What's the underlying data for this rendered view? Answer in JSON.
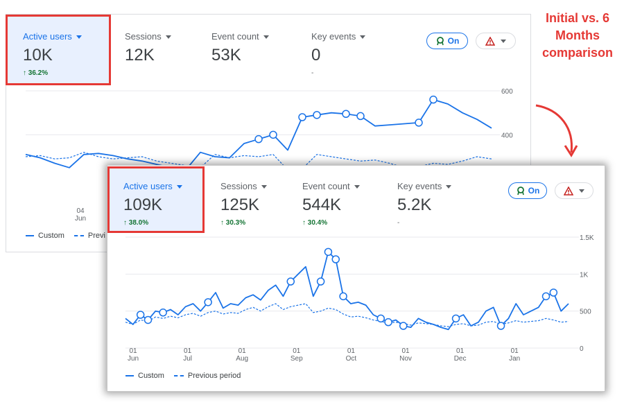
{
  "annotation": {
    "text": "Initial vs. 6 Months comparison"
  },
  "colors": {
    "accent": "#1a73e8",
    "positive": "#137333",
    "highlight": "#e53935",
    "active_bg": "#e8f0fe"
  },
  "panel_initial": {
    "metrics": [
      {
        "label": "Active users",
        "value": "10K",
        "delta": "↑ 36.2%"
      },
      {
        "label": "Sessions",
        "value": "12K",
        "delta": ""
      },
      {
        "label": "Event count",
        "value": "53K",
        "delta": ""
      },
      {
        "label": "Key events",
        "value": "0",
        "delta": "-"
      }
    ],
    "toggle": {
      "label": "On",
      "icon": "insights-badge-icon"
    },
    "alert": {
      "icon": "warning-triangle-icon"
    },
    "legend": {
      "current": "Custom",
      "previous": "Previ"
    }
  },
  "panel_six_months": {
    "metrics": [
      {
        "label": "Active users",
        "value": "109K",
        "delta": "↑ 38.0%"
      },
      {
        "label": "Sessions",
        "value": "125K",
        "delta": "↑ 30.3%"
      },
      {
        "label": "Event count",
        "value": "544K",
        "delta": "↑ 30.4%"
      },
      {
        "label": "Key events",
        "value": "5.2K",
        "delta": "-"
      }
    ],
    "toggle": {
      "label": "On",
      "icon": "insights-badge-icon"
    },
    "alert": {
      "icon": "warning-triangle-icon"
    },
    "legend": {
      "current": "Custom",
      "previous": "Previous period"
    }
  },
  "chart_data": [
    {
      "type": "line",
      "title": "Active users (initial)",
      "ylim": [
        0,
        600
      ],
      "y_ticks": [
        "600",
        "400"
      ],
      "x_ticks": [
        {
          "day": "04",
          "month": "Jun"
        }
      ],
      "series": [
        {
          "name": "Custom",
          "style": "solid",
          "values": [
            310,
            295,
            270,
            250,
            310,
            315,
            305,
            290,
            280,
            265,
            250,
            240,
            320,
            300,
            295,
            360,
            380,
            400,
            330,
            480,
            490,
            500,
            495,
            485,
            440,
            445,
            450,
            455,
            560,
            540,
            500,
            470,
            430
          ]
        },
        {
          "name": "Previous period",
          "style": "dashed",
          "values": [
            300,
            305,
            290,
            295,
            320,
            300,
            290,
            295,
            300,
            280,
            270,
            260,
            250,
            310,
            295,
            305,
            300,
            310,
            240,
            245,
            310,
            300,
            290,
            280,
            285,
            270,
            250,
            255,
            270,
            265,
            280,
            300,
            290
          ]
        }
      ],
      "anomaly_indices": [
        16,
        17,
        19,
        20,
        22,
        23,
        27,
        28
      ]
    },
    {
      "type": "line",
      "title": "Active users (6 months)",
      "ylim": [
        0,
        1500
      ],
      "y_ticks": [
        "1.5K",
        "1K",
        "500",
        "0"
      ],
      "x_ticks": [
        {
          "day": "01",
          "month": "Jun"
        },
        {
          "day": "01",
          "month": "Jul"
        },
        {
          "day": "01",
          "month": "Aug"
        },
        {
          "day": "01",
          "month": "Sep"
        },
        {
          "day": "01",
          "month": "Oct"
        },
        {
          "day": "01",
          "month": "Nov"
        },
        {
          "day": "01",
          "month": "Dec"
        },
        {
          "day": "01",
          "month": "Jan"
        }
      ],
      "series": [
        {
          "name": "Custom",
          "style": "solid",
          "values": [
            400,
            320,
            450,
            380,
            500,
            480,
            520,
            450,
            560,
            600,
            500,
            620,
            750,
            540,
            600,
            580,
            680,
            720,
            650,
            780,
            850,
            700,
            900,
            1000,
            1100,
            700,
            900,
            1300,
            1200,
            700,
            600,
            620,
            580,
            450,
            400,
            350,
            380,
            300,
            280,
            400,
            350,
            320,
            280,
            250,
            400,
            450,
            300,
            350,
            500,
            550,
            300,
            400,
            600,
            450,
            500,
            550,
            700,
            750,
            500,
            600
          ]
        },
        {
          "name": "Previous period",
          "style": "dashed",
          "values": [
            350,
            320,
            380,
            360,
            420,
            400,
            430,
            410,
            450,
            470,
            430,
            480,
            500,
            460,
            480,
            470,
            520,
            550,
            500,
            560,
            600,
            520,
            560,
            580,
            600,
            480,
            500,
            540,
            520,
            460,
            420,
            430,
            410,
            380,
            360,
            340,
            350,
            330,
            310,
            340,
            330,
            320,
            300,
            290,
            320,
            330,
            300,
            310,
            350,
            360,
            320,
            340,
            370,
            350,
            360,
            370,
            400,
            380,
            350,
            360
          ]
        }
      ],
      "anomaly_indices": [
        2,
        3,
        5,
        11,
        22,
        26,
        27,
        28,
        29,
        34,
        35,
        37,
        44,
        50,
        56,
        57
      ]
    }
  ]
}
